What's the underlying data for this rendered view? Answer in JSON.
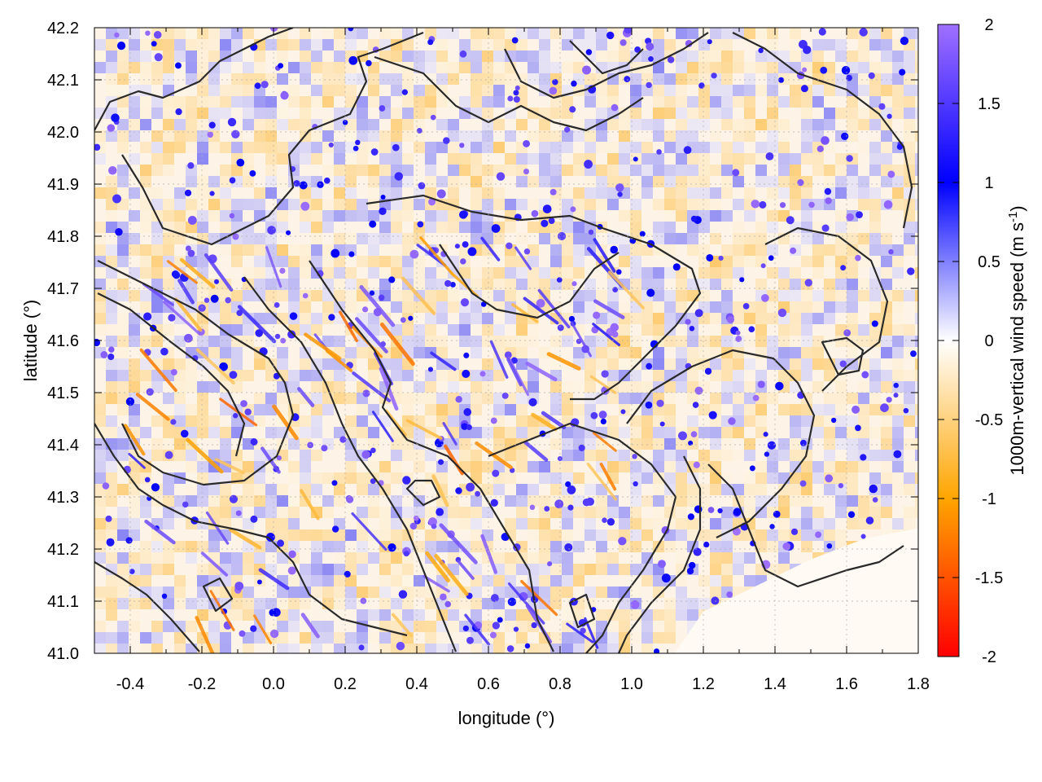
{
  "chart_data": {
    "type": "heatmap",
    "title": "",
    "xlabel": "longitude (°)",
    "ylabel": "latitude (°)",
    "xlim": [
      -0.5,
      1.8
    ],
    "ylim": [
      41.0,
      42.2
    ],
    "xticks": [
      "-0.4",
      "-0.2",
      "0.0",
      "0.2",
      "0.4",
      "0.6",
      "0.8",
      "1.0",
      "1.2",
      "1.4",
      "1.6",
      "1.8"
    ],
    "xtick_values": [
      -0.4,
      -0.2,
      0.0,
      0.2,
      0.4,
      0.6,
      0.8,
      1.0,
      1.2,
      1.4,
      1.6,
      1.8
    ],
    "yticks": [
      "41.0",
      "41.1",
      "41.2",
      "41.3",
      "41.4",
      "41.5",
      "41.6",
      "41.7",
      "41.8",
      "41.9",
      "42.0",
      "42.1",
      "42.2"
    ],
    "ytick_values": [
      41.0,
      41.1,
      41.2,
      41.3,
      41.4,
      41.5,
      41.6,
      41.7,
      41.8,
      41.9,
      42.0,
      42.1,
      42.2
    ],
    "grid": true,
    "colorbar": {
      "label_main": "1000m-vertical wind speed (m s",
      "label_sup": "-1",
      "label_end": ")",
      "range": [
        -2,
        2
      ],
      "ticks": [
        "2",
        "1.5",
        "1",
        "0.5",
        "0",
        "-0.5",
        "-1",
        "-1.5",
        "-2"
      ],
      "tick_values": [
        2,
        1.5,
        1,
        0.5,
        0,
        -0.5,
        -1,
        -1.5,
        -2
      ],
      "stops": [
        {
          "value": -2,
          "color": "#ff0000"
        },
        {
          "value": -1,
          "color": "#ffa500"
        },
        {
          "value": 0,
          "color": "#ffffff"
        },
        {
          "value": 1,
          "color": "#0000ff"
        },
        {
          "value": 2,
          "color": "#a070ff"
        }
      ]
    },
    "contour_color": "#2a2a2a",
    "sea_region": [
      [
        1.12,
        41.0
      ],
      [
        1.2,
        41.08
      ],
      [
        1.35,
        41.13
      ],
      [
        1.5,
        41.18
      ],
      [
        1.65,
        41.22
      ],
      [
        1.8,
        41.24
      ],
      [
        1.8,
        41.0
      ]
    ]
  }
}
